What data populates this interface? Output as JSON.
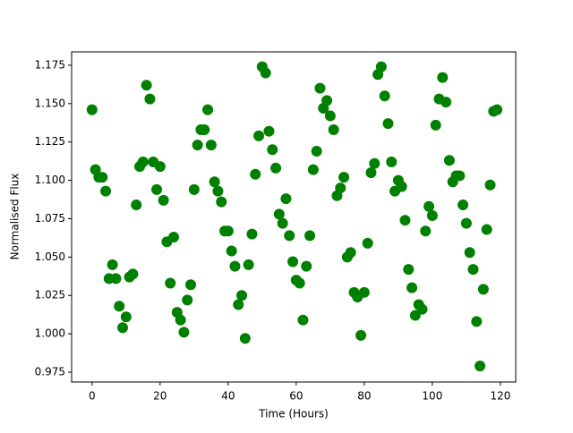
{
  "chart_data": {
    "type": "scatter",
    "xlabel": "Time (Hours)",
    "ylabel": "Normalised Flux",
    "color": "#008000",
    "x": [
      0,
      1,
      2,
      3,
      4,
      5,
      6,
      7,
      8,
      9,
      10,
      11,
      12,
      13,
      14,
      15,
      16,
      17,
      18,
      19,
      20,
      21,
      22,
      23,
      24,
      25,
      26,
      27,
      28,
      29,
      30,
      31,
      32,
      33,
      34,
      35,
      36,
      37,
      38,
      39,
      40,
      41,
      42,
      43,
      44,
      45,
      46,
      47,
      48,
      49,
      50,
      51,
      52,
      53,
      54,
      55,
      56,
      57,
      58,
      59,
      60,
      61,
      62,
      63,
      64,
      65,
      66,
      67,
      68,
      69,
      70,
      71,
      72,
      73,
      74,
      75,
      76,
      77,
      78,
      79,
      80,
      81,
      82,
      83,
      84,
      85,
      86,
      87,
      88,
      89,
      90,
      91,
      92,
      93,
      94,
      95,
      96,
      97,
      98,
      99,
      100,
      101,
      102,
      103,
      104,
      105,
      106,
      107,
      108,
      109,
      110,
      111,
      112,
      113,
      114,
      115,
      116,
      117,
      118,
      119
    ],
    "values": [
      1.146,
      1.107,
      1.102,
      1.102,
      1.093,
      1.036,
      1.045,
      1.036,
      1.018,
      1.004,
      1.011,
      1.037,
      1.039,
      1.084,
      1.109,
      1.112,
      1.162,
      1.153,
      1.112,
      1.094,
      1.109,
      1.087,
      1.06,
      1.033,
      1.063,
      1.014,
      1.009,
      1.001,
      1.022,
      1.032,
      1.094,
      1.123,
      1.133,
      1.133,
      1.146,
      1.123,
      1.099,
      1.093,
      1.086,
      1.067,
      1.067,
      1.054,
      1.044,
      1.019,
      1.025,
      0.997,
      1.045,
      1.065,
      1.104,
      1.129,
      1.174,
      1.17,
      1.132,
      1.12,
      1.108,
      1.078,
      1.072,
      1.088,
      1.064,
      1.047,
      1.035,
      1.033,
      1.009,
      1.044,
      1.064,
      1.107,
      1.119,
      1.16,
      1.147,
      1.152,
      1.142,
      1.133,
      1.09,
      1.095,
      1.102,
      1.05,
      1.053,
      1.027,
      1.024,
      0.999,
      1.027,
      1.059,
      1.105,
      1.111,
      1.169,
      1.174,
      1.155,
      1.137,
      1.112,
      1.093,
      1.1,
      1.096,
      1.074,
      1.042,
      1.03,
      1.012,
      1.019,
      1.016,
      1.067,
      1.083,
      1.077,
      1.136,
      1.153,
      1.167,
      1.151,
      1.113,
      1.099,
      1.103,
      1.103,
      1.084,
      1.072,
      1.053,
      1.042,
      1.008,
      0.979,
      1.029,
      1.068,
      1.097,
      1.145,
      1.146
    ],
    "xlim": [
      -6,
      124.5
    ],
    "ylim": [
      0.9686,
      1.1837
    ],
    "xticks": [
      0,
      20,
      40,
      60,
      80,
      100,
      120
    ],
    "yticks": [
      0.975,
      {
        "value": 1,
        "label": "1.000"
      },
      1.025,
      {
        "value": 1.05,
        "label": "1.050"
      },
      1.075,
      {
        "value": 1.1,
        "label": "1.100"
      },
      1.125,
      {
        "value": 1.15,
        "label": "1.150"
      },
      1.175
    ]
  }
}
